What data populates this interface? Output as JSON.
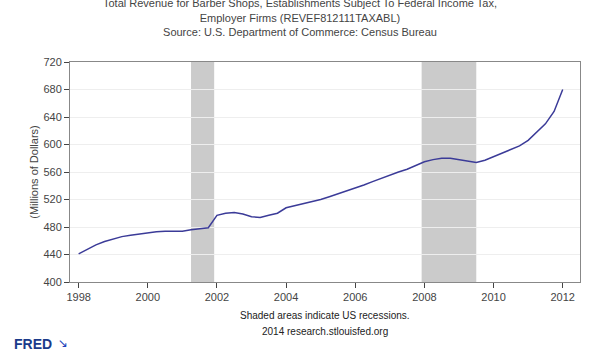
{
  "chart_data": {
    "type": "line",
    "title": "Total Revenue for Barber Shops, Establishments Subject To Federal Income Tax,\nEmployer Firms (REVEF812111TAXABL)",
    "subtitle": "Source: U.S. Department of Commerce: Census Bureau",
    "ylabel": "(Millions of Dollars)",
    "annotations": [
      "Shaded areas indicate US recessions.",
      "2014 research.stlouisfed.org",
      "FRED",
      "↘"
    ],
    "shaded_periods": [
      [
        2001.25,
        2001.92
      ],
      [
        2007.92,
        2009.5
      ]
    ],
    "x": [
      1998.0,
      1998.25,
      1998.5,
      1998.75,
      1999.0,
      1999.25,
      1999.5,
      1999.75,
      2000.0,
      2000.25,
      2000.5,
      2000.75,
      2001.0,
      2001.25,
      2001.5,
      2001.75,
      2002.0,
      2002.25,
      2002.5,
      2002.75,
      2003.0,
      2003.25,
      2003.5,
      2003.75,
      2004.0,
      2004.25,
      2004.5,
      2004.75,
      2005.0,
      2005.25,
      2005.5,
      2005.75,
      2006.0,
      2006.25,
      2006.5,
      2006.75,
      2007.0,
      2007.25,
      2007.5,
      2007.75,
      2008.0,
      2008.25,
      2008.5,
      2008.75,
      2009.0,
      2009.25,
      2009.5,
      2009.75,
      2010.0,
      2010.25,
      2010.5,
      2010.75,
      2011.0,
      2011.25,
      2011.5,
      2011.75,
      2012.0
    ],
    "values": [
      441,
      448,
      454,
      459,
      463,
      466,
      468,
      470,
      472,
      473,
      474,
      474,
      474,
      476,
      478,
      479,
      497,
      500,
      501,
      499,
      495,
      494,
      497,
      500,
      508,
      511,
      514,
      516,
      520,
      524,
      528,
      533,
      537,
      541,
      546,
      551,
      556,
      560,
      564,
      569,
      575,
      578,
      580,
      580,
      578,
      575,
      574,
      577,
      582,
      587,
      592,
      598,
      606,
      618,
      630,
      648,
      680
    ],
    "color": "#3B3B98",
    "xlim": [
      1997.75,
      2012.5
    ],
    "xticks": [
      1998,
      2000,
      2002,
      2004,
      2006,
      2008,
      2010,
      2012
    ],
    "ylim": [
      400,
      720
    ],
    "yticks": [
      400,
      440,
      480,
      520,
      560,
      600,
      640,
      680,
      720
    ],
    "grid": "y"
  }
}
